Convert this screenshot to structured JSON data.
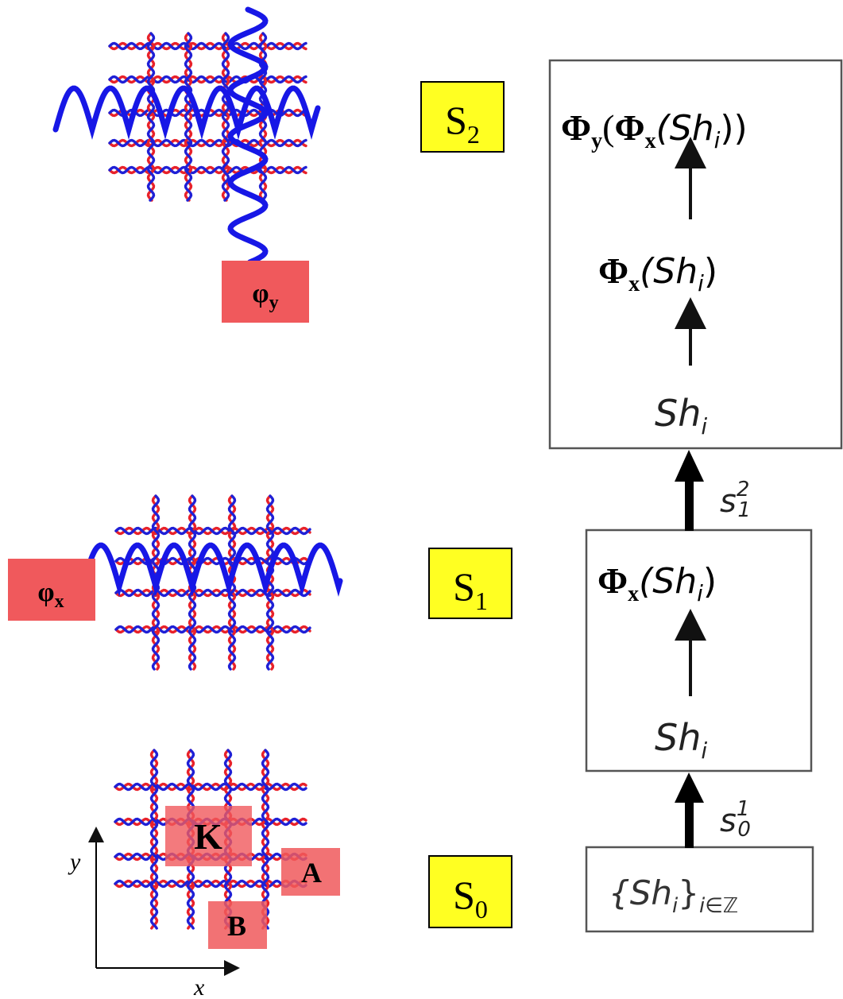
{
  "colors": {
    "strand_red": "#e8222a",
    "strand_blue": "#1f20d6",
    "wave_blue": "#1717e6",
    "site_box": "#f0595c",
    "stage_box": "#ffff22",
    "ink": "#000000",
    "arrow_gray": "#111111"
  },
  "stages": {
    "s2": {
      "letter": "S",
      "sub": "2"
    },
    "s1": {
      "letter": "S",
      "sub": "1"
    },
    "s0": {
      "letter": "S",
      "sub": "0"
    }
  },
  "grid_labels": {
    "phi_y": {
      "main": "φ",
      "sub": "y"
    },
    "phi_x": {
      "main": "φ",
      "sub": "x"
    },
    "K": "K",
    "A": "A",
    "B": "B"
  },
  "axes": {
    "x": "x",
    "y": "y"
  },
  "hierarchy": {
    "top_box": {
      "line1": {
        "outer": "Φ",
        "outer_sub": "y",
        "open": "(",
        "inner": "Φ",
        "inner_sub": "x",
        "arg": "(Sh",
        "arg_sub": "i",
        "close": "))"
      },
      "line2": {
        "phi": "Φ",
        "phi_sub": "x",
        "arg": "(Sh",
        "arg_sub": "i",
        "close": ")"
      },
      "line3": {
        "base": "Sh",
        "sub": "i"
      }
    },
    "mid_box": {
      "line1": {
        "phi": "Φ",
        "phi_sub": "x",
        "arg": "(Sh",
        "arg_sub": "i",
        "close": ")"
      },
      "line2": {
        "base": "Sh",
        "sub": "i"
      }
    },
    "bot_box": {
      "open": "{Sh",
      "sub_i": "i",
      "close": "}",
      "index": "i∈ℤ"
    },
    "arrow_upper": {
      "base": "s",
      "sup": "2",
      "sub": "1"
    },
    "arrow_lower": {
      "base": "s",
      "sup": "1",
      "sub": "0"
    }
  }
}
